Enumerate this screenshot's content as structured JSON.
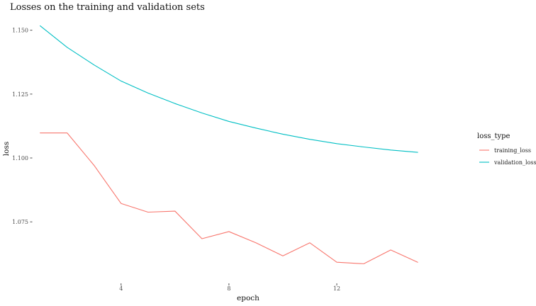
{
  "chart_data": {
    "type": "line",
    "title": "Losses on the training and validation sets",
    "xlabel": "epoch",
    "ylabel": "loss",
    "xlim": [
      0.3,
      16.6
    ],
    "ylim": [
      1.0515,
      1.1535
    ],
    "x_ticks": [
      4,
      8,
      12
    ],
    "y_ticks": [
      1.075,
      1.1,
      1.125,
      1.15
    ],
    "y_tick_labels": [
      "1.075",
      "1.100",
      "1.125",
      "1.150"
    ],
    "grid": false,
    "legend": {
      "title": "loss_type",
      "placement": "right"
    },
    "series": [
      {
        "name": "training_loss",
        "color": "#F8766D",
        "x": [
          1,
          2,
          3,
          4,
          5,
          6,
          7,
          8,
          9,
          10,
          11,
          12,
          13,
          14,
          15
        ],
        "values": [
          1.1098,
          1.1098,
          1.0971,
          1.0822,
          1.0788,
          1.0792,
          1.0684,
          1.0712,
          1.0668,
          1.0617,
          1.0668,
          1.0592,
          1.0586,
          1.064,
          1.0592
        ]
      },
      {
        "name": "validation_loss",
        "color": "#00BFC4",
        "x": [
          1,
          2,
          3,
          4,
          5,
          6,
          7,
          8,
          9,
          10,
          11,
          12,
          13,
          14,
          15
        ],
        "values": [
          1.1517,
          1.1433,
          1.1364,
          1.1301,
          1.1254,
          1.1213,
          1.1176,
          1.1143,
          1.1117,
          1.1093,
          1.1073,
          1.1056,
          1.1043,
          1.1031,
          1.1022
        ]
      }
    ]
  }
}
